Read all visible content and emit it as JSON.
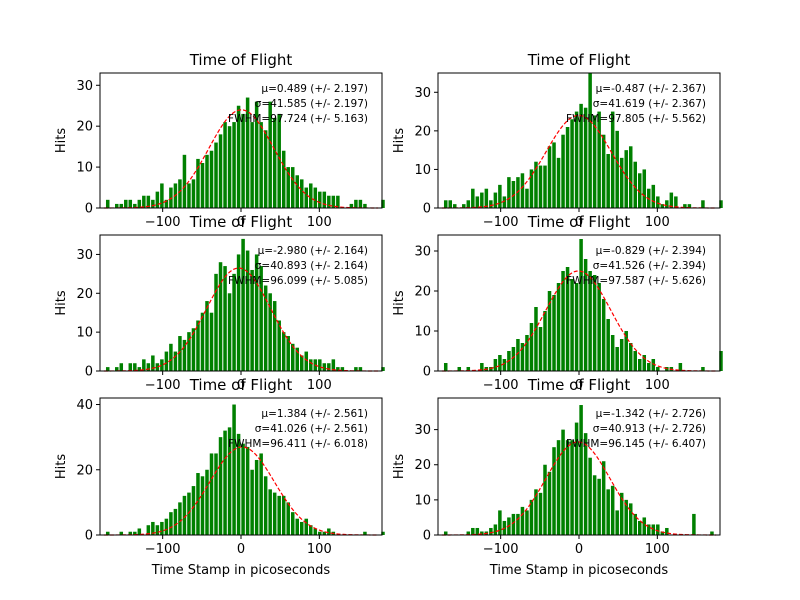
{
  "figure": {
    "background": "#ffffff",
    "bar_color": "#008000",
    "fit_color": "#ff0000"
  },
  "chart_data": [
    {
      "type": "bar",
      "title": "Time of Flight",
      "ylabel": "Hits",
      "xlabel": "",
      "xlim": [
        -180,
        180
      ],
      "ylim": [
        0,
        33
      ],
      "xticks": [
        -100,
        0,
        100
      ],
      "xtick_labels": [
        "−100",
        "0",
        "100"
      ],
      "yticks": [
        0,
        10,
        20,
        30
      ],
      "bin_start": -173,
      "bin_width": 5.76,
      "values": [
        2,
        0,
        1,
        1,
        2,
        2,
        1,
        2,
        3,
        3,
        2,
        4,
        6,
        2,
        5,
        6,
        7,
        13,
        6,
        7,
        12,
        11,
        13,
        14,
        16,
        18,
        21,
        20,
        21,
        25,
        23,
        27,
        21,
        26,
        21,
        19,
        26,
        22,
        23,
        14,
        10,
        10,
        8,
        7,
        5,
        6,
        5,
        4,
        4,
        3,
        3,
        3,
        0,
        0,
        1,
        2,
        2,
        1,
        0,
        0,
        0,
        2
      ],
      "annotations": [
        "μ=0.489 (+/- 2.197)",
        "σ=41.585 (+/- 2.197)",
        "FWHM=97.724 (+/- 5.163)"
      ],
      "fit": {
        "type": "gaussian",
        "mu": 0.489,
        "sigma": 41.585,
        "amplitude": 24
      }
    },
    {
      "type": "bar",
      "title": "Time of Flight",
      "ylabel": "Hits",
      "xlabel": "",
      "xlim": [
        -180,
        180
      ],
      "ylim": [
        0,
        35
      ],
      "xticks": [
        -100,
        0,
        100
      ],
      "xtick_labels": [
        "−100",
        "0",
        "100"
      ],
      "yticks": [
        0,
        10,
        20,
        30
      ],
      "bin_start": -173,
      "bin_width": 5.76,
      "values": [
        2,
        2,
        1,
        0,
        1,
        2,
        5,
        3,
        4,
        5,
        2,
        4,
        6,
        3,
        8,
        7,
        8,
        9,
        5,
        10,
        12,
        11,
        11,
        16,
        17,
        13,
        19,
        21,
        23,
        25,
        27,
        26,
        35,
        24,
        25,
        19,
        14,
        25,
        20,
        13,
        15,
        16,
        12,
        9,
        10,
        5,
        6,
        3,
        1,
        2,
        4,
        3,
        0,
        1,
        1,
        0,
        0,
        2,
        0,
        0,
        0,
        2
      ],
      "annotations": [
        "μ=-0.487 (+/- 2.367)",
        "σ=41.619 (+/- 2.367)",
        "FWHM=97.805 (+/- 5.562)"
      ],
      "fit": {
        "type": "gaussian",
        "mu": -0.487,
        "sigma": 41.619,
        "amplitude": 24
      }
    },
    {
      "type": "bar",
      "title": "Time of Flight",
      "ylabel": "Hits",
      "xlabel": "",
      "xlim": [
        -180,
        180
      ],
      "ylim": [
        0,
        35
      ],
      "xticks": [
        -100,
        0,
        100
      ],
      "xtick_labels": [
        "−100",
        "0",
        "100"
      ],
      "yticks": [
        0,
        10,
        20,
        30
      ],
      "bin_start": -173,
      "bin_width": 5.76,
      "values": [
        1,
        0,
        1,
        2,
        0,
        2,
        2,
        1,
        3,
        2,
        4,
        2,
        3,
        5,
        7,
        5,
        9,
        8,
        10,
        11,
        13,
        15,
        18,
        15,
        25,
        28,
        27,
        20,
        25,
        30,
        34,
        31,
        26,
        30,
        27,
        22,
        20,
        18,
        13,
        10,
        9,
        7,
        6,
        4,
        5,
        3,
        3,
        3,
        2,
        2,
        3,
        1,
        1,
        0,
        0,
        1,
        1,
        0,
        0,
        0,
        0,
        1
      ],
      "annotations": [
        "μ=-2.980 (+/- 2.164)",
        "σ=40.893 (+/- 2.164)",
        "FWHM=96.099 (+/- 5.085)"
      ],
      "fit": {
        "type": "gaussian",
        "mu": -2.98,
        "sigma": 40.893,
        "amplitude": 26.5
      }
    },
    {
      "type": "bar",
      "title": "Time of Flight",
      "ylabel": "Hits",
      "xlabel": "",
      "xlim": [
        -180,
        180
      ],
      "ylim": [
        0,
        34
      ],
      "xticks": [
        -100,
        0,
        100
      ],
      "xtick_labels": [
        "−100",
        "0",
        "100"
      ],
      "yticks": [
        0,
        10,
        20,
        30
      ],
      "bin_start": -173,
      "bin_width": 5.76,
      "values": [
        2,
        0,
        0,
        1,
        0,
        1,
        0,
        0,
        2,
        1,
        1,
        3,
        4,
        3,
        5,
        6,
        8,
        7,
        9,
        12,
        16,
        11,
        15,
        20,
        19,
        22,
        25,
        26,
        23,
        22,
        33,
        28,
        25,
        24,
        22,
        18,
        13,
        9,
        6,
        8,
        10,
        7,
        5,
        3,
        4,
        2,
        3,
        1,
        0,
        1,
        1,
        0,
        2,
        0,
        0,
        0,
        0,
        1,
        0,
        0,
        0,
        5
      ],
      "annotations": [
        "μ=-0.829 (+/- 2.394)",
        "σ=41.526 (+/- 2.394)",
        "FWHM=97.587 (+/- 5.626)"
      ],
      "fit": {
        "type": "gaussian",
        "mu": -0.829,
        "sigma": 41.526,
        "amplitude": 25
      }
    },
    {
      "type": "bar",
      "title": "Time of Flight",
      "ylabel": "Hits",
      "xlabel": "Time Stamp in picoseconds",
      "xlim": [
        -180,
        180
      ],
      "ylim": [
        0,
        42
      ],
      "xticks": [
        -100,
        0,
        100
      ],
      "xtick_labels": [
        "−100",
        "0",
        "100"
      ],
      "yticks": [
        0,
        20,
        40
      ],
      "bin_start": -173,
      "bin_width": 5.76,
      "values": [
        1,
        0,
        0,
        1,
        0,
        1,
        1,
        2,
        0,
        3,
        4,
        3,
        4,
        5,
        7,
        8,
        10,
        12,
        13,
        15,
        19,
        18,
        20,
        25,
        25,
        30,
        32,
        33,
        40,
        31,
        28,
        27,
        20,
        23,
        25,
        18,
        14,
        13,
        12,
        12,
        10,
        7,
        5,
        4,
        5,
        3,
        2,
        1,
        1,
        2,
        1,
        0,
        0,
        0,
        0,
        0,
        0,
        1,
        0,
        0,
        0,
        1
      ],
      "annotations": [
        "μ=1.384 (+/- 2.561)",
        "σ=41.026 (+/- 2.561)",
        "FWHM=96.411 (+/- 6.018)"
      ],
      "fit": {
        "type": "gaussian",
        "mu": 1.384,
        "sigma": 41.026,
        "amplitude": 27
      }
    },
    {
      "type": "bar",
      "title": "Time of Flight",
      "ylabel": "Hits",
      "xlabel": "Time Stamp in picoseconds",
      "xlim": [
        -180,
        180
      ],
      "ylim": [
        0,
        39
      ],
      "xticks": [
        -100,
        0,
        100
      ],
      "xtick_labels": [
        "−100",
        "0",
        "100"
      ],
      "yticks": [
        0,
        10,
        20,
        30
      ],
      "bin_start": -173,
      "bin_width": 5.76,
      "values": [
        1,
        0,
        0,
        0,
        0,
        1,
        2,
        2,
        1,
        1,
        2,
        3,
        7,
        4,
        5,
        6,
        6,
        8,
        7,
        10,
        13,
        12,
        20,
        18,
        25,
        27,
        30,
        27,
        27,
        32,
        37,
        29,
        22,
        17,
        16,
        21,
        13,
        14,
        7,
        12,
        10,
        9,
        6,
        4,
        5,
        3,
        3,
        3,
        1,
        2,
        0,
        0,
        0,
        0,
        0,
        6,
        0,
        0,
        0,
        1,
        0,
        0
      ],
      "annotations": [
        "μ=-1.342 (+/- 2.726)",
        "σ=40.913 (+/- 2.726)",
        "FWHM=96.145 (+/- 6.407)"
      ],
      "fit": {
        "type": "gaussian",
        "mu": -1.342,
        "sigma": 40.913,
        "amplitude": 26.5
      }
    }
  ]
}
